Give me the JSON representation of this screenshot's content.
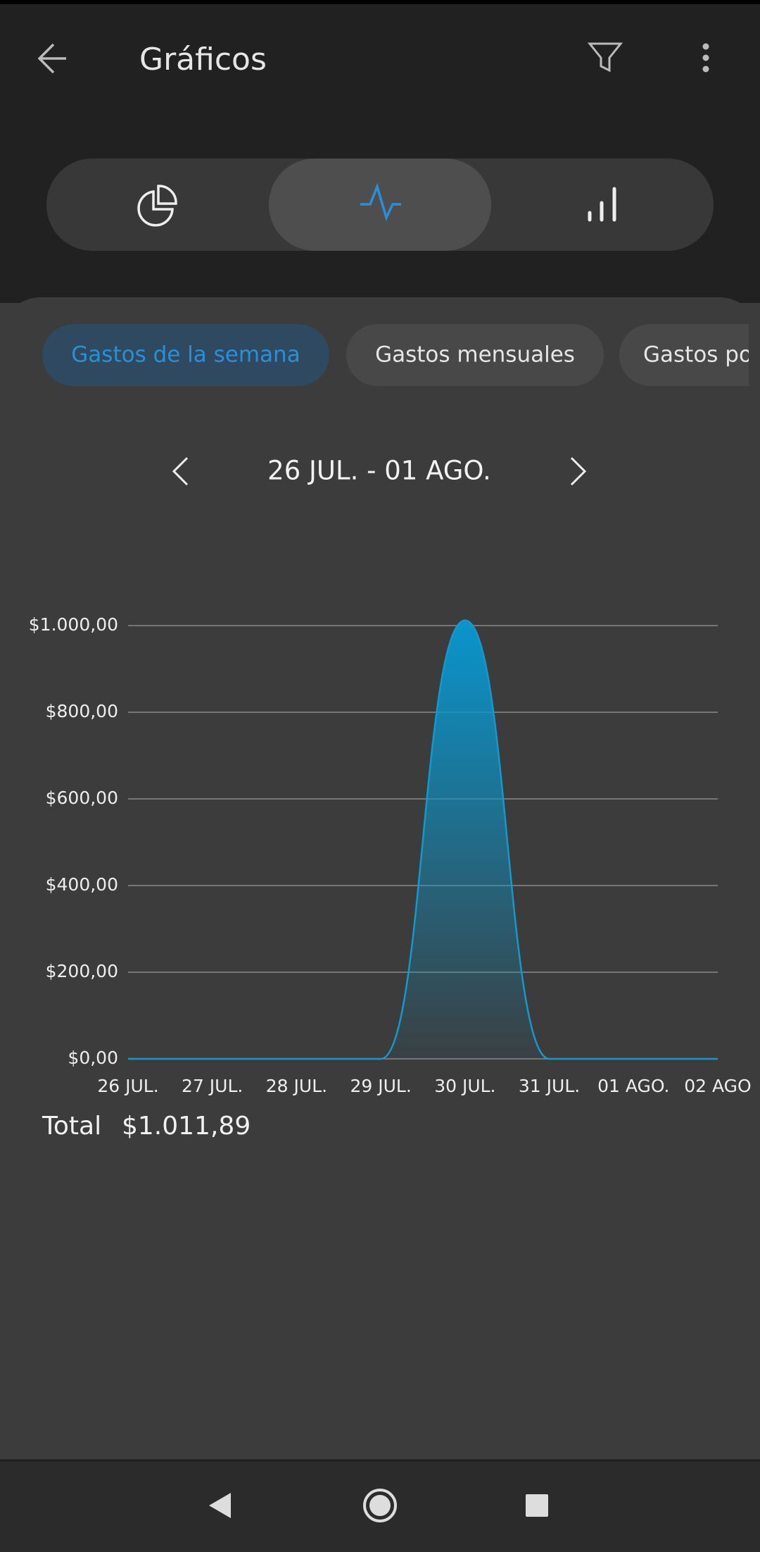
{
  "header": {
    "title": "Gráficos"
  },
  "tabs": [
    "Gastos de la semana",
    "Gastos mensuales",
    "Gastos po"
  ],
  "period": "26 JUL. - 01 AGO.",
  "total": {
    "label": "Total",
    "value": "$1.011,89"
  },
  "chart_data": {
    "type": "area",
    "categories": [
      "26 JUL.",
      "27 JUL.",
      "28 JUL.",
      "29 JUL.",
      "30 JUL.",
      "31 JUL.",
      "01 AGO.",
      "02 AGO"
    ],
    "values": [
      0,
      0,
      0,
      0,
      1011.89,
      0,
      0,
      0
    ],
    "color": "#1598cc",
    "ylim": [
      0,
      1000
    ],
    "yticks": [
      {
        "value": 0,
        "label": "$0,00"
      },
      {
        "value": 200,
        "label": "$200,00"
      },
      {
        "value": 400,
        "label": "$400,00"
      },
      {
        "value": 600,
        "label": "$600,00"
      },
      {
        "value": 800,
        "label": "$800,00"
      },
      {
        "value": 1000,
        "label": "$1.000,00"
      }
    ],
    "grid": true
  }
}
